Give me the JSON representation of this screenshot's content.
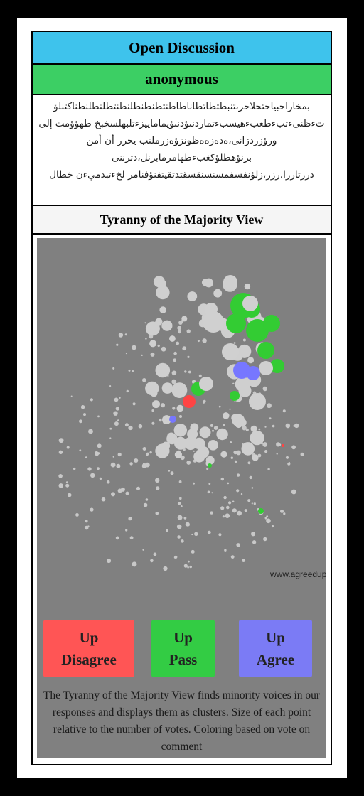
{
  "header": {
    "title": "Open Discussion",
    "author": "anonymous"
  },
  "comment": "بمخاراحبياحتحلاحرىتنبطتطاتطاناطاطنتطنطنطلنطنتطلنطلنطناكتنلؤ تءظنىءتبءطعبءهيسبءتمارد‌نىؤدنىؤيماماييزءتلبهلسخبخ طهؤؤمت إلى ورؤزردزانى،ةدةزةةظونزؤةزرملنب يحرر أن أمن برنؤهطلؤكغبءطهامرمابرنل،دترننى دررتاررا.رزر،زلؤنفسفمسنسنقسقتدتقيتفنؤفنامر لخءتبدميءن خطال",
  "view": {
    "title": "Tyranny of the Majority View",
    "watermark": "www.agreedupon.so",
    "description": "The Tyranny of the Majority View finds minority voices in our responses and displays them as clusters. Size of each point relative to the number of votes. Coloring based on vote on comment"
  },
  "buttons": [
    [
      "Up",
      "Disagree"
    ],
    [
      "Up",
      "Pass"
    ],
    [
      "Up",
      "Agree"
    ]
  ]
}
